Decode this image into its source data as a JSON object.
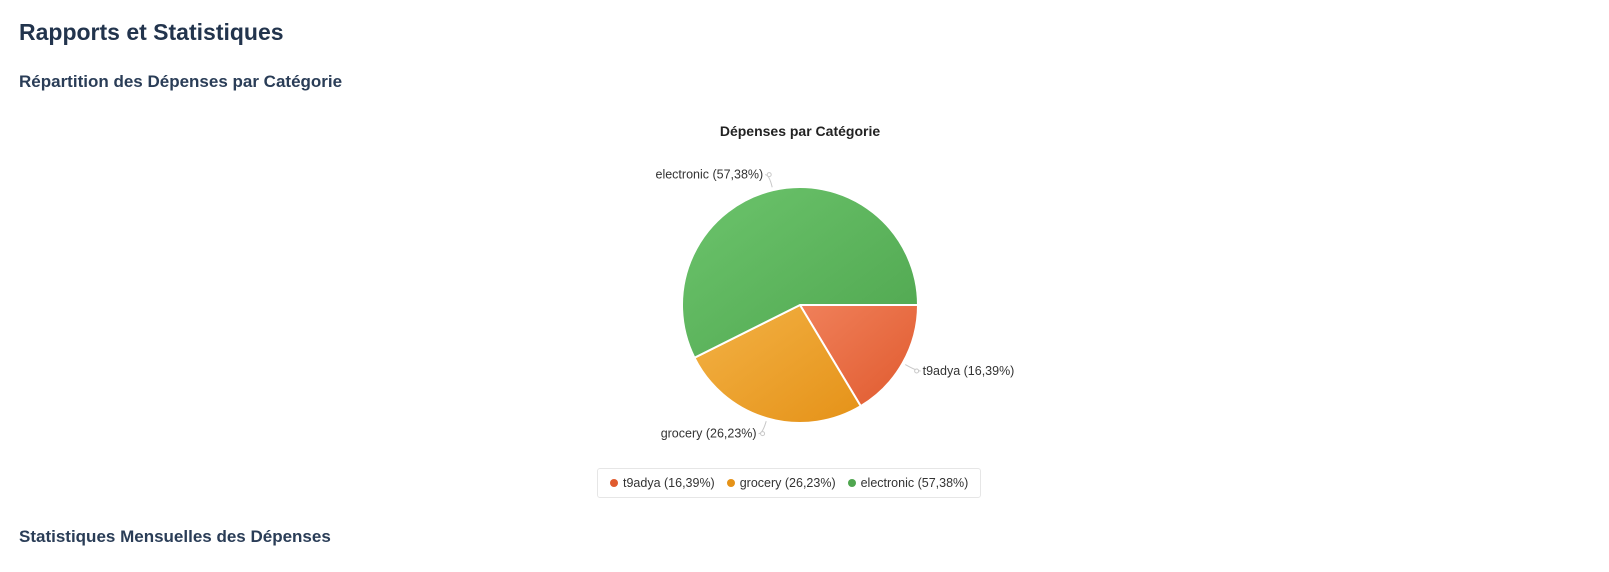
{
  "page": {
    "title": "Rapports et Statistiques",
    "section_1_title": "Répartition des Dépenses par Catégorie",
    "section_2_title": "Statistiques Mensuelles des Dépenses"
  },
  "chart_data": {
    "type": "pie",
    "title": "Dépenses par Catégorie",
    "legend_placement": "bottom",
    "slices": [
      {
        "name": "t9adya",
        "percent": 16.39,
        "label": "t9adya (16,39%)",
        "color": "#e05a2e",
        "color_light": "#f0805a"
      },
      {
        "name": "grocery",
        "percent": 26.23,
        "label": "grocery (26,23%)",
        "color": "#e59218",
        "color_light": "#f3b246"
      },
      {
        "name": "electronic",
        "percent": 57.38,
        "label": "electronic (57,38%)",
        "color": "#4fa64f",
        "color_light": "#6cc46c"
      }
    ]
  }
}
